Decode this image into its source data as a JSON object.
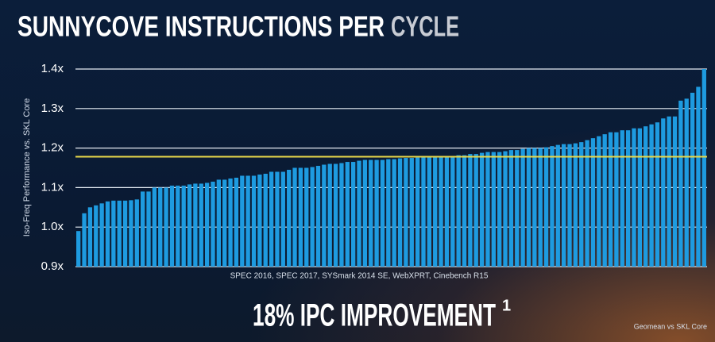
{
  "chart_data": {
    "type": "bar",
    "title": "SUNNYCOVE INSTRUCTIONS PER",
    "title_accent": "CYCLE",
    "y_label": "Iso-Freq Performance vs. SKL Core",
    "x_label": "SPEC 2016, SPEC 2017, SYSmark 2014 SE, WebXPRT, Cinebench R15",
    "annotation": "18% IPC IMPROVEMENT",
    "annotation_footnote": "1",
    "footnote": "Geomean vs SKL Core",
    "color": "#1e9be0",
    "values": [
      0.99,
      1.035,
      1.05,
      1.055,
      1.06,
      1.065,
      1.067,
      1.067,
      1.067,
      1.068,
      1.07,
      1.09,
      1.09,
      1.1,
      1.1,
      1.1,
      1.105,
      1.105,
      1.105,
      1.108,
      1.11,
      1.11,
      1.112,
      1.115,
      1.12,
      1.12,
      1.123,
      1.125,
      1.13,
      1.13,
      1.13,
      1.133,
      1.135,
      1.14,
      1.14,
      1.14,
      1.145,
      1.15,
      1.15,
      1.15,
      1.152,
      1.155,
      1.158,
      1.16,
      1.16,
      1.162,
      1.165,
      1.165,
      1.168,
      1.17,
      1.17,
      1.17,
      1.17,
      1.172,
      1.172,
      1.174,
      1.175,
      1.175,
      1.176,
      1.178,
      1.178,
      1.18,
      1.18,
      1.18,
      1.18,
      1.182,
      1.182,
      1.185,
      1.185,
      1.188,
      1.19,
      1.19,
      1.19,
      1.192,
      1.195,
      1.195,
      1.198,
      1.2,
      1.2,
      1.2,
      1.202,
      1.205,
      1.208,
      1.21,
      1.21,
      1.212,
      1.215,
      1.22,
      1.225,
      1.23,
      1.235,
      1.24,
      1.24,
      1.245,
      1.245,
      1.25,
      1.25,
      1.255,
      1.26,
      1.265,
      1.275,
      1.28,
      1.28,
      1.32,
      1.325,
      1.34,
      1.355,
      1.4
    ],
    "ylim": [
      0.9,
      1.4
    ],
    "yticks": [
      {
        "value": 0.9,
        "label": "0.9x"
      },
      {
        "value": 1.0,
        "label": "1.0x"
      },
      {
        "value": 1.1,
        "label": "1.1x"
      },
      {
        "value": 1.2,
        "label": "1.2x"
      },
      {
        "value": 1.3,
        "label": "1.3x"
      },
      {
        "value": 1.4,
        "label": "1.4x"
      }
    ],
    "grid": true,
    "reference_line": {
      "value": 1.178,
      "color": "#e8d84a"
    }
  }
}
